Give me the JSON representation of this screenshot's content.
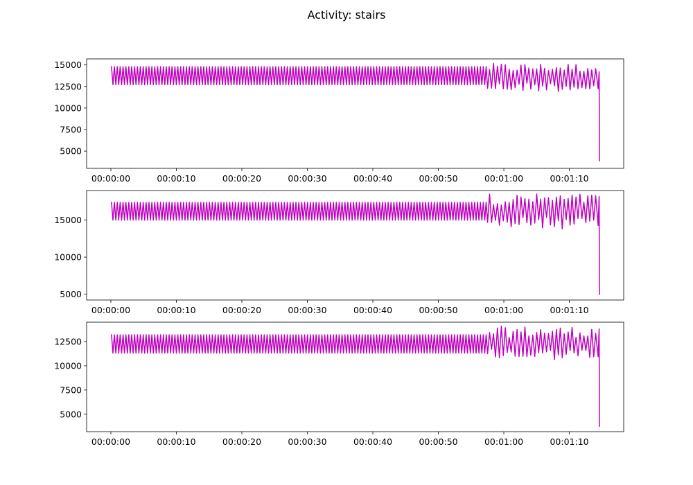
{
  "chart_data": {
    "title": "Activity: stairs",
    "type": "line",
    "color": "#bf00bf",
    "x_tick_labels": [
      "00:00:00",
      "00:00:10",
      "00:00:20",
      "00:00:30",
      "00:00:40",
      "00:00:50",
      "00:01:00",
      "00:01:10"
    ],
    "x_tick_seconds": [
      0,
      10,
      20,
      30,
      40,
      50,
      60,
      70
    ],
    "x_end_seconds": 74.6,
    "grid": false,
    "legend": "none",
    "subplots": [
      {
        "ylim": [
          3000,
          15700
        ],
        "y_ticks": [
          5000,
          7500,
          10000,
          12500,
          15000
        ],
        "y_tick_labels": [
          "5000",
          "7500",
          "10000",
          "12500",
          "15000"
        ],
        "series": {
          "start_value": 14800,
          "steady_high": 14800,
          "steady_low": 12700,
          "steady_until_s": 57.3,
          "noisy_high_max": 15200,
          "noisy_low_min": 11900,
          "noisy_baseline": 13600,
          "final_high": 14200,
          "end_value": 3800
        }
      },
      {
        "ylim": [
          4200,
          19000
        ],
        "y_ticks": [
          5000,
          10000,
          15000
        ],
        "y_tick_labels": [
          "5000",
          "10000",
          "15000"
        ],
        "series": {
          "start_value": 17400,
          "steady_high": 17400,
          "steady_low": 15000,
          "steady_until_s": 57.3,
          "noisy_high_max": 18600,
          "noisy_low_min": 13800,
          "noisy_baseline": 16200,
          "final_high": 18200,
          "end_value": 4900
        }
      },
      {
        "ylim": [
          3200,
          14500
        ],
        "y_ticks": [
          5000,
          7500,
          10000,
          12500
        ],
        "y_tick_labels": [
          "5000",
          "7500",
          "10000",
          "12500"
        ],
        "series": {
          "start_value": 13200,
          "steady_high": 13200,
          "steady_low": 11300,
          "steady_until_s": 57.3,
          "noisy_high_max": 14100,
          "noisy_low_min": 10600,
          "noisy_baseline": 12300,
          "final_high": 13800,
          "end_value": 3700
        }
      }
    ]
  }
}
